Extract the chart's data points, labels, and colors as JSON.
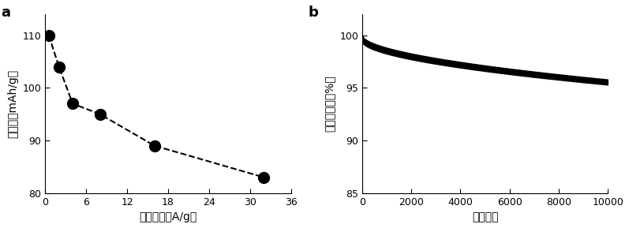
{
  "panel_a": {
    "x": [
      0.5,
      2,
      4,
      8,
      16,
      32
    ],
    "y": [
      110,
      104,
      97,
      95,
      89,
      83
    ],
    "xlabel": "电流密度（A/g）",
    "ylabel": "比容量（mAh/g）",
    "xlim": [
      0,
      36
    ],
    "ylim": [
      80,
      114
    ],
    "xticks": [
      0,
      6,
      12,
      18,
      24,
      30,
      36
    ],
    "yticks": [
      80,
      90,
      100,
      110
    ],
    "label": "a"
  },
  "panel_b": {
    "x_start": 0,
    "x_end": 10000,
    "y_top_start": 100.0,
    "y_top_end": 95.8,
    "y_bot_start": 99.4,
    "y_bot_end": 95.3,
    "xlabel": "循环次数",
    "ylabel": "容量保持率（%）",
    "xlim": [
      0,
      10000
    ],
    "ylim": [
      85,
      102
    ],
    "xticks": [
      0,
      2000,
      4000,
      6000,
      8000,
      10000
    ],
    "yticks": [
      85,
      90,
      95,
      100
    ],
    "label": "b"
  },
  "line_color": "#000000",
  "marker_color": "#000000",
  "background_color": "#ffffff"
}
